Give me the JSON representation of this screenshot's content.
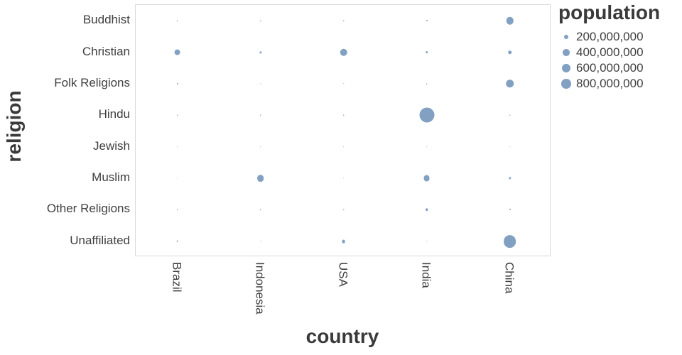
{
  "colors": {
    "bubble": "#4c78a8",
    "bubble_opacity": 0.7,
    "axis_text": "#3f3f3f",
    "title_text": "#3a3a3a",
    "plot_border": "#d9d9d9"
  },
  "chart_data": {
    "type": "scatter",
    "variant": "bubble-punchcard",
    "title": "",
    "xlabel": "country",
    "ylabel": "religion",
    "x_categories": [
      "Brazil",
      "Indonesia",
      "USA",
      "India",
      "China"
    ],
    "y_categories": [
      "Buddhist",
      "Christian",
      "Folk Religions",
      "Hindu",
      "Jewish",
      "Muslim",
      "Other Religions",
      "Unaffiliated"
    ],
    "size_field": "population",
    "size_legend": {
      "title": "population",
      "entries": [
        {
          "value": 200000000,
          "label": "200,000,000"
        },
        {
          "value": 400000000,
          "label": "400,000,000"
        },
        {
          "value": 600000000,
          "label": "600,000,000"
        },
        {
          "value": 800000000,
          "label": "800,000,000"
        }
      ]
    },
    "points": [
      {
        "country": "Brazil",
        "religion": "Buddhist",
        "population": 250000
      },
      {
        "country": "Brazil",
        "religion": "Christian",
        "population": 173300000
      },
      {
        "country": "Brazil",
        "religion": "Folk Religions",
        "population": 10010000
      },
      {
        "country": "Brazil",
        "religion": "Hindu",
        "population": 10000
      },
      {
        "country": "Brazil",
        "religion": "Jewish",
        "population": 110000
      },
      {
        "country": "Brazil",
        "religion": "Muslim",
        "population": 40000
      },
      {
        "country": "Brazil",
        "religion": "Other Religions",
        "population": 1820000
      },
      {
        "country": "Brazil",
        "religion": "Unaffiliated",
        "population": 15410000
      },
      {
        "country": "Indonesia",
        "religion": "Buddhist",
        "population": 1720000
      },
      {
        "country": "Indonesia",
        "religion": "Christian",
        "population": 23660000
      },
      {
        "country": "Indonesia",
        "religion": "Folk Religions",
        "population": 750000
      },
      {
        "country": "Indonesia",
        "religion": "Hindu",
        "population": 4050000
      },
      {
        "country": "Indonesia",
        "religion": "Jewish",
        "population": 10000
      },
      {
        "country": "Indonesia",
        "religion": "Muslim",
        "population": 209120000
      },
      {
        "country": "Indonesia",
        "religion": "Other Religions",
        "population": 340000
      },
      {
        "country": "Indonesia",
        "religion": "Unaffiliated",
        "population": 240000
      },
      {
        "country": "USA",
        "religion": "Buddhist",
        "population": 3570000
      },
      {
        "country": "USA",
        "religion": "Christian",
        "population": 243060000
      },
      {
        "country": "USA",
        "religion": "Folk Religions",
        "population": 630000
      },
      {
        "country": "USA",
        "religion": "Hindu",
        "population": 1790000
      },
      {
        "country": "USA",
        "religion": "Jewish",
        "population": 5690000
      },
      {
        "country": "USA",
        "religion": "Muslim",
        "population": 2770000
      },
      {
        "country": "USA",
        "religion": "Other Religions",
        "population": 630000
      },
      {
        "country": "USA",
        "religion": "Unaffiliated",
        "population": 50980000
      },
      {
        "country": "India",
        "religion": "Buddhist",
        "population": 9250000
      },
      {
        "country": "India",
        "religion": "Christian",
        "population": 31130000
      },
      {
        "country": "India",
        "religion": "Folk Religions",
        "population": 5840000
      },
      {
        "country": "India",
        "religion": "Hindu",
        "population": 973750000
      },
      {
        "country": "India",
        "religion": "Jewish",
        "population": 10000
      },
      {
        "country": "India",
        "religion": "Muslim",
        "population": 176190000
      },
      {
        "country": "India",
        "religion": "Other Religions",
        "population": 27560000
      },
      {
        "country": "India",
        "religion": "Unaffiliated",
        "population": 870000
      },
      {
        "country": "China",
        "religion": "Buddhist",
        "population": 244130000
      },
      {
        "country": "China",
        "religion": "Christian",
        "population": 68410000
      },
      {
        "country": "China",
        "religion": "Folk Religions",
        "population": 294320000
      },
      {
        "country": "China",
        "religion": "Hindu",
        "population": 20000
      },
      {
        "country": "China",
        "religion": "Jewish",
        "population": 10000
      },
      {
        "country": "China",
        "religion": "Muslim",
        "population": 24690000
      },
      {
        "country": "China",
        "religion": "Other Religions",
        "population": 9080000
      },
      {
        "country": "China",
        "religion": "Unaffiliated",
        "population": 700680000
      }
    ]
  }
}
